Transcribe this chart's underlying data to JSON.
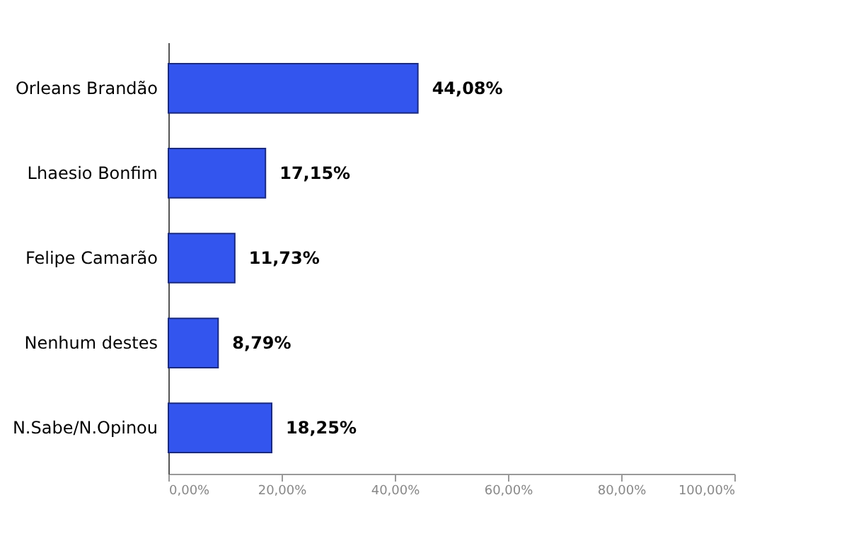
{
  "chart_data": {
    "type": "bar",
    "orientation": "horizontal",
    "categories": [
      "Orleans Brandão",
      "Lhaesio Bonfim",
      "Felipe Camarão",
      "Nenhum destes",
      "N.Sabe/N.Opinou"
    ],
    "values": [
      44.08,
      17.15,
      11.73,
      8.79,
      18.25
    ],
    "value_labels": [
      "44,08%",
      "17,15%",
      "11,73%",
      "8,79%",
      "18,25%"
    ],
    "color": "#3355ee",
    "xlim": [
      0,
      100
    ],
    "xticks": [
      {
        "value": 0,
        "label": "0,00%"
      },
      {
        "value": 20,
        "label": "20,00%"
      },
      {
        "value": 40,
        "label": "40,00%"
      },
      {
        "value": 60,
        "label": "60,00%"
      },
      {
        "value": 80,
        "label": "80,00%"
      },
      {
        "value": 100,
        "label": "100,00%"
      }
    ],
    "grid": false
  }
}
